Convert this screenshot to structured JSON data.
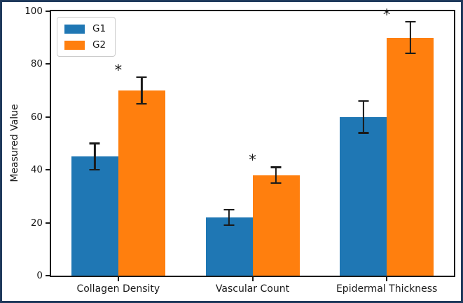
{
  "figure": {
    "border_color": "#1f3a5c",
    "background": "#ffffff"
  },
  "chart_data": {
    "type": "bar",
    "title": "",
    "xlabel": "",
    "ylabel": "Measured Value",
    "categories": [
      "Collagen Density",
      "Vascular Count",
      "Epidermal Thickness"
    ],
    "series": [
      {
        "name": "G1",
        "color": "#1f77b4",
        "values": [
          45,
          22,
          60
        ],
        "errors": [
          5,
          3,
          6
        ]
      },
      {
        "name": "G2",
        "color": "#ff7f0e",
        "values": [
          70,
          38,
          90
        ],
        "errors": [
          5,
          3,
          6
        ]
      }
    ],
    "significance_markers": {
      "symbol": "*",
      "on_series": "G2",
      "categories": [
        "Collagen Density",
        "Vascular Count",
        "Epidermal Thickness"
      ]
    },
    "ylim": [
      0,
      100
    ],
    "yticks": [
      0,
      20,
      40,
      60,
      80,
      100
    ],
    "error_bar_color": "#1a1a1a",
    "grid": false,
    "legend": {
      "position": "upper-left",
      "entries": [
        "G1",
        "G2"
      ]
    }
  }
}
